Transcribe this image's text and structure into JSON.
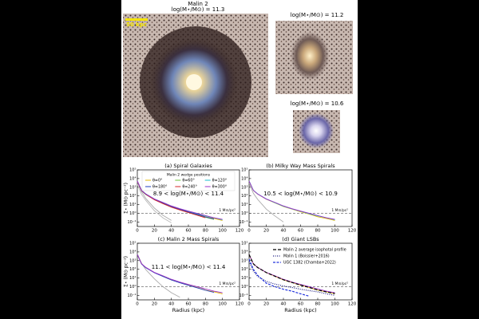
{
  "figure": {
    "header": {
      "title": "Malin 2",
      "mass": "log(M⋆/M⊙) = 11.3"
    },
    "main_image": {
      "scale_bar": "50 kpc"
    },
    "side_images": [
      {
        "mass": "log(M⋆/M⊙) = 11.2"
      },
      {
        "mass": "log(M⋆/M⊙) = 10.6"
      }
    ]
  },
  "chart_data": [
    {
      "type": "line",
      "title": "(a) Spiral Galaxies",
      "annotation": "8.9 < log(M⋆/M⊙) < 11.4",
      "ylabel": "Σ⋆ (M⊙ pc⁻²)",
      "legend_title": "Malin 2 wedge positions",
      "legend": "upper-center",
      "log_y": true,
      "xlim": [
        0,
        120
      ],
      "xticks": [
        0,
        20,
        40,
        60,
        80,
        100,
        120
      ],
      "ylim": [
        0.03,
        100000
      ],
      "yticks": [
        {
          "value": 100000,
          "label": "10⁵"
        },
        {
          "value": 10000,
          "label": "10⁴"
        },
        {
          "value": 1000,
          "label": "10³"
        },
        {
          "value": 100,
          "label": "10²"
        },
        {
          "value": 10,
          "label": "10¹"
        },
        {
          "value": 1,
          "label": "10⁰"
        },
        {
          "value": 0.1,
          "label": "10⁻¹"
        }
      ],
      "hline": 1,
      "hline_label": "1 M⊙/pc²",
      "x": [
        0,
        5,
        10,
        20,
        30,
        40,
        50,
        60,
        70,
        80,
        90,
        100
      ],
      "series": [
        {
          "color": "#aaaaaa",
          "values": [
            4000,
            300,
            50,
            4,
            0.6,
            0.15,
            null,
            null,
            null,
            null,
            null,
            null
          ]
        },
        {
          "color": "#bbbbbb",
          "values": [
            2000,
            150,
            30,
            2,
            0.3,
            0.08,
            null,
            null,
            null,
            null,
            null,
            null
          ]
        },
        {
          "name": "θ=0°",
          "color": "#e6b800",
          "values": [
            5000,
            420,
            160,
            42,
            16,
            6,
            3,
            1.5,
            0.8,
            0.4,
            0.25,
            0.15
          ]
        },
        {
          "name": "θ=60°",
          "color": "#6cc33a",
          "values": [
            4800,
            380,
            140,
            38,
            14,
            5.5,
            2.6,
            1.3,
            0.7,
            0.35,
            0.2,
            null
          ]
        },
        {
          "name": "θ=120°",
          "color": "#17becf",
          "values": [
            5200,
            450,
            170,
            45,
            17,
            6.5,
            3.2,
            1.7,
            0.9,
            0.5,
            0.3,
            0.18
          ]
        },
        {
          "name": "θ=180°",
          "color": "#1f3fbf",
          "values": [
            5000,
            400,
            150,
            40,
            15,
            5.8,
            2.8,
            1.4,
            0.75,
            0.38,
            0.22,
            null
          ]
        },
        {
          "name": "θ=240°",
          "color": "#d62728",
          "values": [
            4900,
            410,
            155,
            36,
            13,
            5,
            2.4,
            1.2,
            0.6,
            0.3,
            null,
            null
          ]
        },
        {
          "name": "θ=300°",
          "color": "#9b30c8",
          "values": [
            5100,
            430,
            165,
            44,
            18,
            7,
            3.4,
            1.8,
            1,
            0.55,
            0.3,
            0.2
          ]
        }
      ]
    },
    {
      "type": "line",
      "title": "(b) Milky Way Mass Spirals",
      "annotation": "10.5 < log(M⋆/M⊙) < 10.9",
      "log_y": true,
      "xlim": [
        0,
        120
      ],
      "xticks": [
        0,
        20,
        40,
        60,
        80,
        100,
        120
      ],
      "ylim": [
        0.03,
        100000
      ],
      "yticks": [
        {
          "value": 100000,
          "label": "10⁵"
        },
        {
          "value": 10000,
          "label": "10⁴"
        },
        {
          "value": 1000,
          "label": "10³"
        },
        {
          "value": 100,
          "label": "10²"
        },
        {
          "value": 10,
          "label": "10¹"
        },
        {
          "value": 1,
          "label": "10⁰"
        },
        {
          "value": 0.1,
          "label": "10⁻¹"
        }
      ],
      "hline": 1,
      "hline_label": "1 M⊙/pc²",
      "x": [
        0,
        5,
        10,
        20,
        30,
        40,
        50,
        60,
        70,
        80,
        90,
        100
      ],
      "series": [
        {
          "color": "#aaaaaa",
          "values": [
            3000,
            200,
            40,
            3,
            0.5,
            0.1,
            null,
            null,
            null,
            null,
            null,
            null
          ]
        },
        {
          "color": "#e6b800",
          "values": [
            5000,
            420,
            160,
            42,
            16,
            6,
            3,
            1.5,
            0.8,
            0.4,
            0.25,
            0.15
          ]
        },
        {
          "color": "#17becf",
          "values": [
            5200,
            450,
            170,
            45,
            17,
            6.5,
            3.2,
            1.7,
            0.9,
            0.5,
            0.3,
            0.18
          ]
        },
        {
          "color": "#9b30c8",
          "values": [
            5100,
            430,
            165,
            44,
            18,
            7,
            3.4,
            1.8,
            1,
            0.55,
            0.3,
            0.2
          ]
        }
      ]
    },
    {
      "type": "line",
      "title": "(c) Malin 2 Mass Spirals",
      "annotation": "11.1 < log(M⋆/M⊙) < 11.4",
      "ylabel": "Σ⋆ (M⊙ pc⁻²)",
      "xlabel": "Radius (kpc)",
      "log_y": true,
      "xlim": [
        0,
        120
      ],
      "xticks": [
        0,
        20,
        40,
        60,
        80,
        100,
        120
      ],
      "ylim": [
        0.03,
        100000
      ],
      "yticks": [
        {
          "value": 100000,
          "label": "10⁵"
        },
        {
          "value": 10000,
          "label": "10⁴"
        },
        {
          "value": 1000,
          "label": "10³"
        },
        {
          "value": 100,
          "label": "10²"
        },
        {
          "value": 10,
          "label": "10¹"
        },
        {
          "value": 1,
          "label": "10⁰"
        },
        {
          "value": 0.1,
          "label": "10⁻¹"
        }
      ],
      "hline": 1,
      "hline_label": "1 M⊙/pc²",
      "x": [
        0,
        5,
        10,
        20,
        30,
        40,
        50,
        60,
        70,
        80,
        90,
        100
      ],
      "series": [
        {
          "color": "#aaaaaa",
          "values": [
            6000,
            500,
            90,
            8,
            1,
            0.2,
            0.06,
            null,
            null,
            null,
            null,
            null
          ]
        },
        {
          "color": "#e6b800",
          "values": [
            5000,
            420,
            160,
            42,
            16,
            6,
            3,
            1.5,
            0.8,
            0.4,
            0.25,
            0.15
          ]
        },
        {
          "color": "#1f3fbf",
          "values": [
            5000,
            400,
            150,
            40,
            15,
            5.8,
            2.8,
            1.4,
            0.75,
            0.38,
            0.22,
            null
          ]
        },
        {
          "color": "#9b30c8",
          "values": [
            5100,
            430,
            165,
            44,
            18,
            7,
            3.4,
            1.8,
            1,
            0.55,
            0.3,
            0.2
          ]
        }
      ]
    },
    {
      "type": "line",
      "title": "(d) Giant LSBs",
      "xlabel": "Radius (kpc)",
      "legend": "upper-right",
      "log_y": true,
      "xlim": [
        0,
        120
      ],
      "xticks": [
        0,
        20,
        40,
        60,
        80,
        100,
        120
      ],
      "ylim": [
        0.03,
        100000
      ],
      "yticks": [
        {
          "value": 100000,
          "label": "10⁵"
        },
        {
          "value": 10000,
          "label": "10⁴"
        },
        {
          "value": 1000,
          "label": "10³"
        },
        {
          "value": 100,
          "label": "10²"
        },
        {
          "value": 10,
          "label": "10¹"
        },
        {
          "value": 1,
          "label": "10⁰"
        },
        {
          "value": 0.1,
          "label": "10⁻¹"
        }
      ],
      "hline": 1,
      "hline_label": "1 M⊙/pc²",
      "x": [
        0,
        5,
        10,
        20,
        30,
        40,
        50,
        60,
        70,
        80,
        90,
        100
      ],
      "series": [
        {
          "color": "#e6b800",
          "values": [
            5000,
            420,
            160,
            42,
            16,
            6,
            3,
            1.5,
            0.8,
            0.4,
            0.25,
            0.15
          ]
        },
        {
          "color": "#9b30c8",
          "values": [
            5100,
            430,
            165,
            44,
            18,
            7,
            3.4,
            1.8,
            1,
            0.55,
            0.3,
            0.2
          ]
        },
        {
          "name": "Malin 2 average isophotal profile",
          "color": "#000000",
          "dash": "4 2",
          "values": [
            5000,
            420,
            158,
            42,
            16,
            6.2,
            3,
            1.5,
            0.8,
            0.42,
            0.25,
            0.16
          ]
        },
        {
          "name": "Malin 1 (Boissier+2016)",
          "color": "#1a1a80",
          "dash": "1 1.5",
          "values": [
            800,
            60,
            15,
            4,
            2,
            1.2,
            0.8,
            0.5,
            0.35,
            0.25,
            0.15,
            0.1
          ]
        },
        {
          "name": "UGC 1382 (Chamba+2022)",
          "color": "#2233dd",
          "dash": "3 1.5",
          "values": [
            1500,
            100,
            20,
            2.5,
            1,
            0.5,
            0.3,
            0.15,
            0.08,
            null,
            null,
            null
          ]
        }
      ]
    }
  ]
}
